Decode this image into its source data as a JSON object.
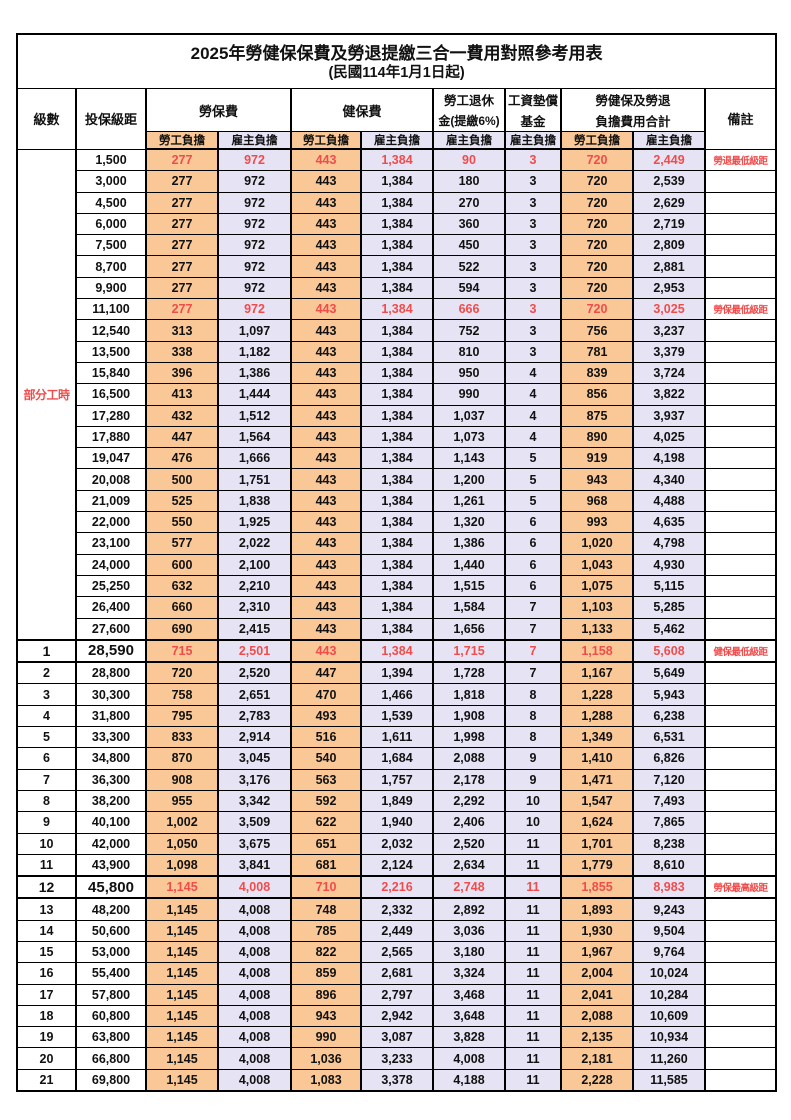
{
  "title": "2025年勞健保保費及勞退提繳三合一費用對照參考用表",
  "subtitle": "(民國114年1月1日起)",
  "colors": {
    "employee_fill": "#FAC896",
    "employer_fill": "#E6E4F4",
    "highlight_red": "#F04C4C",
    "border": "#000000",
    "background": "#FFFFFF"
  },
  "header": {
    "level": "級數",
    "bracket": "投保級距",
    "labor_insurance": "勞保費",
    "health_insurance": "健保費",
    "pension_line1": "勞工退休",
    "pension_line2": "金(提繳6%)",
    "wage_fund_line1": "工資墊償",
    "wage_fund_line2": "基金",
    "total_line1": "勞健保及勞退",
    "total_line2": "負擔費用合計",
    "remark": "備註",
    "employee": "勞工負擔",
    "employer": "雇主負擔"
  },
  "part_time": {
    "label": "部分工時",
    "row_count": 23
  },
  "rows": [
    {
      "level": null,
      "bracket": "1,500",
      "values": [
        "277",
        "972",
        "443",
        "1,384",
        "90",
        "3",
        "720",
        "2,449"
      ],
      "remark": "勞退最低級距",
      "red": true,
      "section": false
    },
    {
      "level": null,
      "bracket": "3,000",
      "values": [
        "277",
        "972",
        "443",
        "1,384",
        "180",
        "3",
        "720",
        "2,539"
      ],
      "remark": "",
      "red": false,
      "section": false
    },
    {
      "level": null,
      "bracket": "4,500",
      "values": [
        "277",
        "972",
        "443",
        "1,384",
        "270",
        "3",
        "720",
        "2,629"
      ],
      "remark": "",
      "red": false,
      "section": false
    },
    {
      "level": null,
      "bracket": "6,000",
      "values": [
        "277",
        "972",
        "443",
        "1,384",
        "360",
        "3",
        "720",
        "2,719"
      ],
      "remark": "",
      "red": false,
      "section": false
    },
    {
      "level": null,
      "bracket": "7,500",
      "values": [
        "277",
        "972",
        "443",
        "1,384",
        "450",
        "3",
        "720",
        "2,809"
      ],
      "remark": "",
      "red": false,
      "section": false
    },
    {
      "level": null,
      "bracket": "8,700",
      "values": [
        "277",
        "972",
        "443",
        "1,384",
        "522",
        "3",
        "720",
        "2,881"
      ],
      "remark": "",
      "red": false,
      "section": false
    },
    {
      "level": null,
      "bracket": "9,900",
      "values": [
        "277",
        "972",
        "443",
        "1,384",
        "594",
        "3",
        "720",
        "2,953"
      ],
      "remark": "",
      "red": false,
      "section": false
    },
    {
      "level": null,
      "bracket": "11,100",
      "values": [
        "277",
        "972",
        "443",
        "1,384",
        "666",
        "3",
        "720",
        "3,025"
      ],
      "remark": "勞保最低級距",
      "red": true,
      "section": false
    },
    {
      "level": null,
      "bracket": "12,540",
      "values": [
        "313",
        "1,097",
        "443",
        "1,384",
        "752",
        "3",
        "756",
        "3,237"
      ],
      "remark": "",
      "red": false,
      "section": false
    },
    {
      "level": null,
      "bracket": "13,500",
      "values": [
        "338",
        "1,182",
        "443",
        "1,384",
        "810",
        "3",
        "781",
        "3,379"
      ],
      "remark": "",
      "red": false,
      "section": false
    },
    {
      "level": null,
      "bracket": "15,840",
      "values": [
        "396",
        "1,386",
        "443",
        "1,384",
        "950",
        "4",
        "839",
        "3,724"
      ],
      "remark": "",
      "red": false,
      "section": false
    },
    {
      "level": null,
      "bracket": "16,500",
      "values": [
        "413",
        "1,444",
        "443",
        "1,384",
        "990",
        "4",
        "856",
        "3,822"
      ],
      "remark": "",
      "red": false,
      "section": false
    },
    {
      "level": null,
      "bracket": "17,280",
      "values": [
        "432",
        "1,512",
        "443",
        "1,384",
        "1,037",
        "4",
        "875",
        "3,937"
      ],
      "remark": "",
      "red": false,
      "section": false
    },
    {
      "level": null,
      "bracket": "17,880",
      "values": [
        "447",
        "1,564",
        "443",
        "1,384",
        "1,073",
        "4",
        "890",
        "4,025"
      ],
      "remark": "",
      "red": false,
      "section": false
    },
    {
      "level": null,
      "bracket": "19,047",
      "values": [
        "476",
        "1,666",
        "443",
        "1,384",
        "1,143",
        "5",
        "919",
        "4,198"
      ],
      "remark": "",
      "red": false,
      "section": false
    },
    {
      "level": null,
      "bracket": "20,008",
      "values": [
        "500",
        "1,751",
        "443",
        "1,384",
        "1,200",
        "5",
        "943",
        "4,340"
      ],
      "remark": "",
      "red": false,
      "section": false
    },
    {
      "level": null,
      "bracket": "21,009",
      "values": [
        "525",
        "1,838",
        "443",
        "1,384",
        "1,261",
        "5",
        "968",
        "4,488"
      ],
      "remark": "",
      "red": false,
      "section": false
    },
    {
      "level": null,
      "bracket": "22,000",
      "values": [
        "550",
        "1,925",
        "443",
        "1,384",
        "1,320",
        "6",
        "993",
        "4,635"
      ],
      "remark": "",
      "red": false,
      "section": false
    },
    {
      "level": null,
      "bracket": "23,100",
      "values": [
        "577",
        "2,022",
        "443",
        "1,384",
        "1,386",
        "6",
        "1,020",
        "4,798"
      ],
      "remark": "",
      "red": false,
      "section": false
    },
    {
      "level": null,
      "bracket": "24,000",
      "values": [
        "600",
        "2,100",
        "443",
        "1,384",
        "1,440",
        "6",
        "1,043",
        "4,930"
      ],
      "remark": "",
      "red": false,
      "section": false
    },
    {
      "level": null,
      "bracket": "25,250",
      "values": [
        "632",
        "2,210",
        "443",
        "1,384",
        "1,515",
        "6",
        "1,075",
        "5,115"
      ],
      "remark": "",
      "red": false,
      "section": false
    },
    {
      "level": null,
      "bracket": "26,400",
      "values": [
        "660",
        "2,310",
        "443",
        "1,384",
        "1,584",
        "7",
        "1,103",
        "5,285"
      ],
      "remark": "",
      "red": false,
      "section": false
    },
    {
      "level": null,
      "bracket": "27,600",
      "values": [
        "690",
        "2,415",
        "443",
        "1,384",
        "1,656",
        "7",
        "1,133",
        "5,462"
      ],
      "remark": "",
      "red": false,
      "section": false
    },
    {
      "level": "1",
      "bracket": "28,590",
      "values": [
        "715",
        "2,501",
        "443",
        "1,384",
        "1,715",
        "7",
        "1,158",
        "5,608"
      ],
      "remark": "健保最低級距",
      "red": true,
      "section": true
    },
    {
      "level": "2",
      "bracket": "28,800",
      "values": [
        "720",
        "2,520",
        "447",
        "1,394",
        "1,728",
        "7",
        "1,167",
        "5,649"
      ],
      "remark": "",
      "red": false,
      "section": false
    },
    {
      "level": "3",
      "bracket": "30,300",
      "values": [
        "758",
        "2,651",
        "470",
        "1,466",
        "1,818",
        "8",
        "1,228",
        "5,943"
      ],
      "remark": "",
      "red": false,
      "section": false
    },
    {
      "level": "4",
      "bracket": "31,800",
      "values": [
        "795",
        "2,783",
        "493",
        "1,539",
        "1,908",
        "8",
        "1,288",
        "6,238"
      ],
      "remark": "",
      "red": false,
      "section": false
    },
    {
      "level": "5",
      "bracket": "33,300",
      "values": [
        "833",
        "2,914",
        "516",
        "1,611",
        "1,998",
        "8",
        "1,349",
        "6,531"
      ],
      "remark": "",
      "red": false,
      "section": false
    },
    {
      "level": "6",
      "bracket": "34,800",
      "values": [
        "870",
        "3,045",
        "540",
        "1,684",
        "2,088",
        "9",
        "1,410",
        "6,826"
      ],
      "remark": "",
      "red": false,
      "section": false
    },
    {
      "level": "7",
      "bracket": "36,300",
      "values": [
        "908",
        "3,176",
        "563",
        "1,757",
        "2,178",
        "9",
        "1,471",
        "7,120"
      ],
      "remark": "",
      "red": false,
      "section": false
    },
    {
      "level": "8",
      "bracket": "38,200",
      "values": [
        "955",
        "3,342",
        "592",
        "1,849",
        "2,292",
        "10",
        "1,547",
        "7,493"
      ],
      "remark": "",
      "red": false,
      "section": false
    },
    {
      "level": "9",
      "bracket": "40,100",
      "values": [
        "1,002",
        "3,509",
        "622",
        "1,940",
        "2,406",
        "10",
        "1,624",
        "7,865"
      ],
      "remark": "",
      "red": false,
      "section": false
    },
    {
      "level": "10",
      "bracket": "42,000",
      "values": [
        "1,050",
        "3,675",
        "651",
        "2,032",
        "2,520",
        "11",
        "1,701",
        "8,238"
      ],
      "remark": "",
      "red": false,
      "section": false
    },
    {
      "level": "11",
      "bracket": "43,900",
      "values": [
        "1,098",
        "3,841",
        "681",
        "2,124",
        "2,634",
        "11",
        "1,779",
        "8,610"
      ],
      "remark": "",
      "red": false,
      "section": false
    },
    {
      "level": "12",
      "bracket": "45,800",
      "values": [
        "1,145",
        "4,008",
        "710",
        "2,216",
        "2,748",
        "11",
        "1,855",
        "8,983"
      ],
      "remark": "勞保最高級距",
      "red": true,
      "section": true
    },
    {
      "level": "13",
      "bracket": "48,200",
      "values": [
        "1,145",
        "4,008",
        "748",
        "2,332",
        "2,892",
        "11",
        "1,893",
        "9,243"
      ],
      "remark": "",
      "red": false,
      "section": false
    },
    {
      "level": "14",
      "bracket": "50,600",
      "values": [
        "1,145",
        "4,008",
        "785",
        "2,449",
        "3,036",
        "11",
        "1,930",
        "9,504"
      ],
      "remark": "",
      "red": false,
      "section": false
    },
    {
      "level": "15",
      "bracket": "53,000",
      "values": [
        "1,145",
        "4,008",
        "822",
        "2,565",
        "3,180",
        "11",
        "1,967",
        "9,764"
      ],
      "remark": "",
      "red": false,
      "section": false
    },
    {
      "level": "16",
      "bracket": "55,400",
      "values": [
        "1,145",
        "4,008",
        "859",
        "2,681",
        "3,324",
        "11",
        "2,004",
        "10,024"
      ],
      "remark": "",
      "red": false,
      "section": false
    },
    {
      "level": "17",
      "bracket": "57,800",
      "values": [
        "1,145",
        "4,008",
        "896",
        "2,797",
        "3,468",
        "11",
        "2,041",
        "10,284"
      ],
      "remark": "",
      "red": false,
      "section": false
    },
    {
      "level": "18",
      "bracket": "60,800",
      "values": [
        "1,145",
        "4,008",
        "943",
        "2,942",
        "3,648",
        "11",
        "2,088",
        "10,609"
      ],
      "remark": "",
      "red": false,
      "section": false
    },
    {
      "level": "19",
      "bracket": "63,800",
      "values": [
        "1,145",
        "4,008",
        "990",
        "3,087",
        "3,828",
        "11",
        "2,135",
        "10,934"
      ],
      "remark": "",
      "red": false,
      "section": false
    },
    {
      "level": "20",
      "bracket": "66,800",
      "values": [
        "1,145",
        "4,008",
        "1,036",
        "3,233",
        "4,008",
        "11",
        "2,181",
        "11,260"
      ],
      "remark": "",
      "red": false,
      "section": false
    },
    {
      "level": "21",
      "bracket": "69,800",
      "values": [
        "1,145",
        "4,008",
        "1,083",
        "3,378",
        "4,188",
        "11",
        "2,228",
        "11,585"
      ],
      "remark": "",
      "red": false,
      "section": false
    }
  ]
}
